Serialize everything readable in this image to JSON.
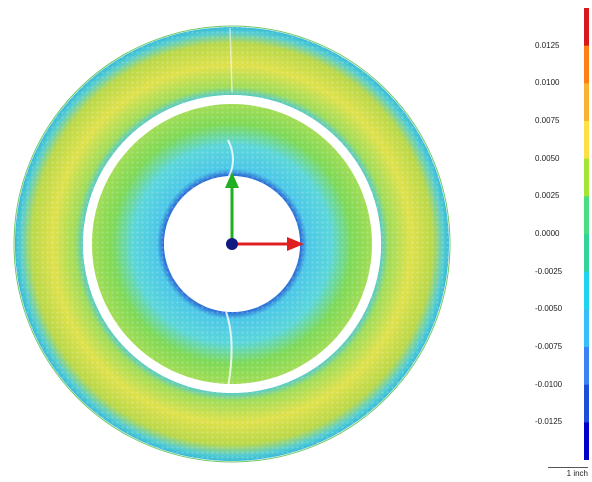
{
  "legend": {
    "ticks": [
      "0.0125",
      "0.0100",
      "0.0075",
      "0.0050",
      "0.0025",
      "0.0000",
      "-0.0025",
      "-0.0050",
      "-0.0075",
      "-0.0100",
      "-0.0125"
    ],
    "colors": [
      "#d7191c",
      "#fd7e14",
      "#f9b233",
      "#fde047",
      "#a3e635",
      "#4ade80",
      "#34d399",
      "#22d3ee",
      "#38bdf8",
      "#3b82f6",
      "#1d4ed8",
      "#0000c8"
    ]
  },
  "scale_bar": {
    "label": "1 inch"
  },
  "axes": {
    "x_arrow_color": "#e02020",
    "y_arrow_color": "#22b022",
    "origin_color": "#101a80"
  },
  "rings": {
    "outer_color_main": "#b9d84a",
    "outer_color_warm": "#e6d54a",
    "outer_edge_color": "#4fc8d4",
    "inner_color_main": "#7ed957",
    "inner_color_cool": "#57d0e0",
    "inner_edge_color": "#2b6fd6"
  }
}
